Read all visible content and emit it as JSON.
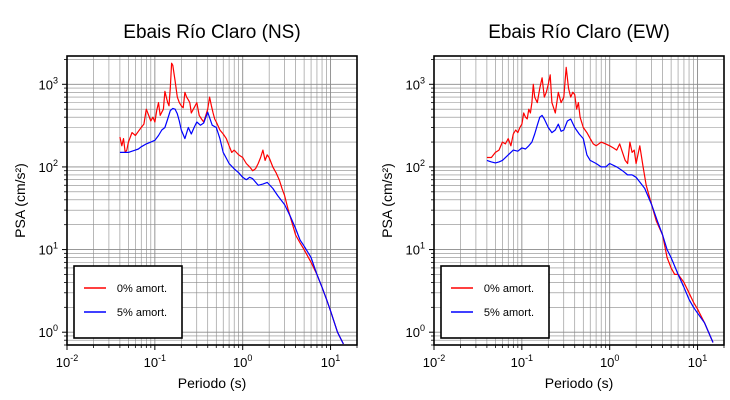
{
  "chart_data": [
    {
      "type": "line",
      "title": "Ebais Río Claro (NS)",
      "xlabel": "Periodo (s)",
      "ylabel": "PSA (cm/s²)",
      "xscale": "log",
      "yscale": "log",
      "xlim": [
        0.01,
        20
      ],
      "ylim": [
        0.7,
        2200
      ],
      "xticks": [
        "10⁻²",
        "10⁻¹",
        "10⁰",
        "10¹"
      ],
      "yticks": [
        "10⁰",
        "10¹",
        "10²",
        "10³"
      ],
      "grid": true,
      "legend_position": "bottom-left",
      "series": [
        {
          "name": "0% amort.",
          "color": "#ff0000",
          "x": [
            0.04,
            0.042,
            0.044,
            0.046,
            0.048,
            0.05,
            0.055,
            0.06,
            0.065,
            0.07,
            0.075,
            0.08,
            0.085,
            0.09,
            0.095,
            0.1,
            0.105,
            0.11,
            0.115,
            0.12,
            0.125,
            0.13,
            0.135,
            0.14,
            0.145,
            0.15,
            0.155,
            0.16,
            0.17,
            0.18,
            0.19,
            0.2,
            0.21,
            0.22,
            0.23,
            0.24,
            0.25,
            0.26,
            0.28,
            0.3,
            0.32,
            0.34,
            0.36,
            0.38,
            0.4,
            0.42,
            0.44,
            0.46,
            0.48,
            0.5,
            0.55,
            0.6,
            0.65,
            0.7,
            0.75,
            0.8,
            0.9,
            1.0,
            1.1,
            1.2,
            1.3,
            1.4,
            1.5,
            1.6,
            1.7,
            1.8,
            1.9,
            2.0,
            2.2,
            2.4,
            2.6,
            2.8,
            3.0,
            3.3,
            3.6,
            4.0,
            4.5,
            5,
            6,
            7,
            8,
            9,
            10,
            12,
            14
          ],
          "y": [
            230,
            180,
            220,
            150,
            160,
            200,
            260,
            240,
            270,
            300,
            330,
            500,
            420,
            360,
            400,
            350,
            480,
            600,
            420,
            460,
            500,
            820,
            700,
            600,
            550,
            900,
            1800,
            1700,
            1100,
            700,
            600,
            550,
            520,
            800,
            700,
            650,
            600,
            450,
            520,
            600,
            420,
            380,
            350,
            420,
            500,
            700,
            550,
            450,
            380,
            350,
            280,
            250,
            220,
            180,
            150,
            160,
            140,
            130,
            110,
            100,
            90,
            95,
            110,
            130,
            160,
            120,
            140,
            130,
            100,
            85,
            70,
            55,
            45,
            30,
            22,
            15,
            12,
            10,
            7,
            5,
            3.5,
            2.5,
            1.8,
            1.0,
            0.72
          ]
        },
        {
          "name": "5% amort.",
          "color": "#0000ff",
          "x": [
            0.04,
            0.045,
            0.05,
            0.055,
            0.06,
            0.065,
            0.07,
            0.08,
            0.09,
            0.1,
            0.11,
            0.12,
            0.13,
            0.14,
            0.15,
            0.16,
            0.17,
            0.18,
            0.19,
            0.2,
            0.22,
            0.24,
            0.26,
            0.28,
            0.3,
            0.33,
            0.36,
            0.4,
            0.45,
            0.5,
            0.55,
            0.6,
            0.7,
            0.8,
            0.9,
            1.0,
            1.1,
            1.2,
            1.3,
            1.5,
            1.7,
            1.9,
            2.2,
            2.5,
            3.0,
            3.5,
            4,
            4.5,
            5,
            6,
            7,
            8,
            9,
            10,
            12,
            14
          ],
          "y": [
            150,
            150,
            150,
            155,
            160,
            165,
            175,
            190,
            200,
            210,
            240,
            280,
            300,
            380,
            480,
            510,
            500,
            440,
            360,
            280,
            220,
            300,
            250,
            300,
            350,
            320,
            340,
            460,
            320,
            300,
            220,
            150,
            110,
            95,
            85,
            75,
            70,
            75,
            72,
            60,
            62,
            65,
            55,
            45,
            35,
            25,
            18,
            13,
            11,
            8,
            5,
            3.5,
            2.5,
            1.8,
            1.0,
            0.72
          ]
        }
      ]
    },
    {
      "type": "line",
      "title": "Ebais Río Claro (EW)",
      "xlabel": "Periodo (s)",
      "ylabel": "PSA (cm/s²)",
      "xscale": "log",
      "yscale": "log",
      "xlim": [
        0.01,
        20
      ],
      "ylim": [
        0.7,
        2200
      ],
      "xticks": [
        "10⁻²",
        "10⁻¹",
        "10⁰",
        "10¹"
      ],
      "yticks": [
        "10⁰",
        "10¹",
        "10²",
        "10³"
      ],
      "grid": true,
      "legend_position": "bottom-left",
      "series": [
        {
          "name": "0% amort.",
          "color": "#ff0000",
          "x": [
            0.04,
            0.045,
            0.05,
            0.055,
            0.06,
            0.065,
            0.07,
            0.075,
            0.08,
            0.085,
            0.09,
            0.095,
            0.1,
            0.105,
            0.11,
            0.115,
            0.12,
            0.125,
            0.13,
            0.135,
            0.14,
            0.15,
            0.16,
            0.17,
            0.18,
            0.19,
            0.2,
            0.21,
            0.22,
            0.24,
            0.26,
            0.28,
            0.3,
            0.32,
            0.34,
            0.36,
            0.38,
            0.4,
            0.42,
            0.44,
            0.46,
            0.5,
            0.55,
            0.6,
            0.65,
            0.7,
            0.8,
            0.9,
            1.0,
            1.1,
            1.2,
            1.3,
            1.4,
            1.5,
            1.6,
            1.7,
            1.8,
            1.9,
            2.0,
            2.2,
            2.4,
            2.6,
            3.0,
            3.4,
            4.0,
            4.5,
            5.0,
            5.5,
            6,
            7,
            8,
            9,
            10,
            12,
            15
          ],
          "y": [
            130,
            130,
            150,
            160,
            200,
            190,
            220,
            180,
            250,
            280,
            260,
            300,
            330,
            450,
            400,
            380,
            500,
            450,
            600,
            1000,
            700,
            600,
            900,
            1200,
            700,
            800,
            1000,
            1300,
            600,
            450,
            800,
            600,
            700,
            1600,
            900,
            700,
            800,
            750,
            500,
            600,
            400,
            300,
            260,
            220,
            190,
            180,
            200,
            190,
            180,
            170,
            160,
            190,
            150,
            120,
            110,
            200,
            150,
            160,
            110,
            180,
            100,
            60,
            35,
            22,
            15,
            8,
            6,
            5,
            5,
            4,
            3,
            2.3,
            1.9,
            1.3,
            0.75
          ]
        },
        {
          "name": "5% amort.",
          "color": "#0000ff",
          "x": [
            0.04,
            0.045,
            0.05,
            0.055,
            0.06,
            0.07,
            0.08,
            0.09,
            0.1,
            0.11,
            0.12,
            0.13,
            0.14,
            0.15,
            0.16,
            0.17,
            0.18,
            0.2,
            0.22,
            0.24,
            0.26,
            0.28,
            0.3,
            0.33,
            0.36,
            0.4,
            0.45,
            0.5,
            0.55,
            0.6,
            0.7,
            0.8,
            0.9,
            1.0,
            1.2,
            1.4,
            1.6,
            1.8,
            2.0,
            2.5,
            3,
            3.5,
            4,
            4.5,
            5,
            6,
            7,
            8,
            9,
            10,
            12,
            15
          ],
          "y": [
            120,
            115,
            112,
            115,
            120,
            140,
            160,
            155,
            170,
            165,
            180,
            200,
            250,
            320,
            400,
            420,
            380,
            300,
            260,
            280,
            330,
            270,
            280,
            360,
            380,
            300,
            250,
            220,
            140,
            120,
            110,
            100,
            100,
            110,
            100,
            90,
            80,
            80,
            75,
            55,
            35,
            22,
            15,
            10,
            8,
            5,
            3.5,
            2.5,
            2,
            1.7,
            1.3,
            0.75
          ]
        }
      ]
    }
  ]
}
